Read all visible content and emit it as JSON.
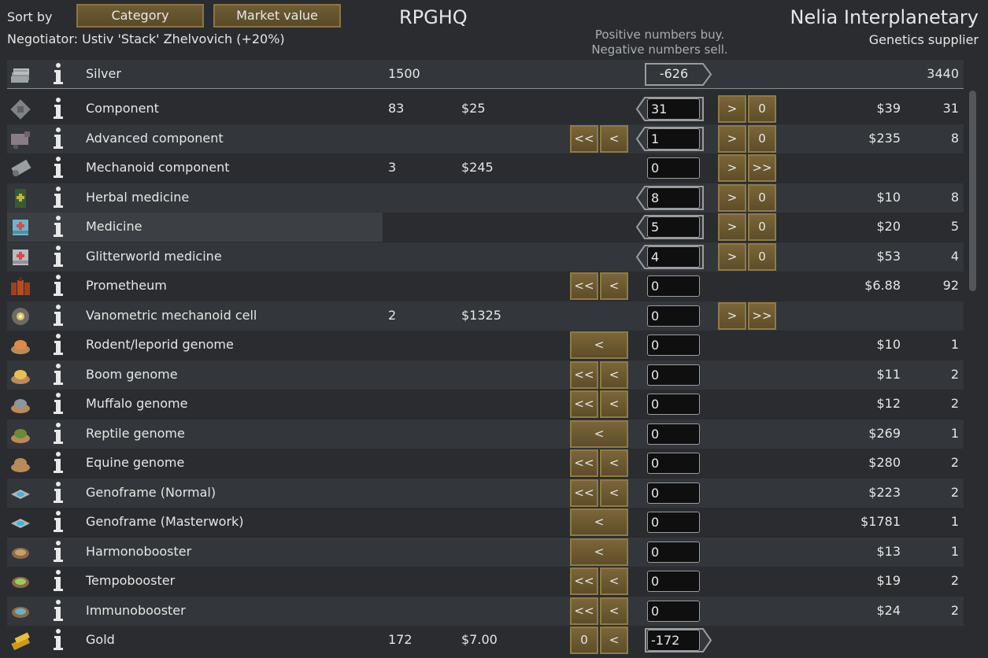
{
  "header": {
    "sort_by_label": "Sort by",
    "sort_buttons": [
      "Category",
      "Market value"
    ],
    "negotiator": "Negotiator: Ustiv 'Stack' Zhelvovich (+20%)",
    "colony_name": "RPGHQ",
    "trader_name": "Nelia Interplanetary",
    "trader_kind": "Genetics supplier",
    "hint_line1": "Positive numbers buy.",
    "hint_line2": "Negative numbers sell."
  },
  "silver": {
    "name": "Silver",
    "colony_count": "1500",
    "trade_amount": "-626",
    "trader_count": "3440",
    "icon": "silver-icon"
  },
  "rows": [
    {
      "name": "Component",
      "icon": "component-icon",
      "colony_count": "83",
      "colony_price": "$25",
      "left_buttons": [],
      "field": "31",
      "arrow": "left",
      "right_buttons": [
        ">",
        "0"
      ],
      "trader_price": "$39",
      "trader_count": "31"
    },
    {
      "name": "Advanced component",
      "icon": "advanced-component-icon",
      "colony_count": "",
      "colony_price": "",
      "left_buttons": [
        "<<",
        "<"
      ],
      "field": "1",
      "arrow": "left",
      "right_buttons": [
        ">",
        "0"
      ],
      "trader_price": "$235",
      "trader_count": "8"
    },
    {
      "name": "Mechanoid component",
      "icon": "mechanoid-component-icon",
      "colony_count": "3",
      "colony_price": "$245",
      "left_buttons": [],
      "field": "0",
      "arrow": "",
      "right_buttons": [
        ">",
        ">>"
      ],
      "trader_price": "",
      "trader_count": ""
    },
    {
      "name": "Herbal medicine",
      "icon": "herbal-medicine-icon",
      "colony_count": "",
      "colony_price": "",
      "left_buttons": [],
      "field": "8",
      "arrow": "left",
      "right_buttons": [
        ">",
        "0"
      ],
      "trader_price": "$10",
      "trader_count": "8"
    },
    {
      "name": "Medicine",
      "icon": "medicine-icon",
      "colony_count": "",
      "colony_price": "",
      "left_buttons": [],
      "field": "5",
      "arrow": "left",
      "right_buttons": [
        ">",
        "0"
      ],
      "trader_price": "$20",
      "trader_count": "5",
      "highlight": true
    },
    {
      "name": "Glitterworld medicine",
      "icon": "glitterworld-medicine-icon",
      "colony_count": "",
      "colony_price": "",
      "left_buttons": [],
      "field": "4",
      "arrow": "left",
      "right_buttons": [
        ">",
        "0"
      ],
      "trader_price": "$53",
      "trader_count": "4"
    },
    {
      "name": "Prometheum",
      "icon": "prometheum-icon",
      "colony_count": "",
      "colony_price": "",
      "left_buttons": [
        "<<",
        "<"
      ],
      "field": "0",
      "arrow": "",
      "right_buttons": [],
      "trader_price": "$6.88",
      "trader_count": "92"
    },
    {
      "name": "Vanometric mechanoid cell",
      "icon": "vanometric-cell-icon",
      "colony_count": "2",
      "colony_price": "$1325",
      "left_buttons": [],
      "field": "0",
      "arrow": "",
      "right_buttons": [
        ">",
        ">>"
      ],
      "trader_price": "",
      "trader_count": ""
    },
    {
      "name": "Rodent/leporid genome",
      "icon": "genome-icon",
      "colony_count": "",
      "colony_price": "",
      "left_buttons": [
        "<"
      ],
      "field": "0",
      "arrow": "",
      "right_buttons": [],
      "trader_price": "$10",
      "trader_count": "1"
    },
    {
      "name": "Boom genome",
      "icon": "genome-icon",
      "colony_count": "",
      "colony_price": "",
      "left_buttons": [
        "<<",
        "<"
      ],
      "field": "0",
      "arrow": "",
      "right_buttons": [],
      "trader_price": "$11",
      "trader_count": "2"
    },
    {
      "name": "Muffalo genome",
      "icon": "genome-icon",
      "colony_count": "",
      "colony_price": "",
      "left_buttons": [
        "<<",
        "<"
      ],
      "field": "0",
      "arrow": "",
      "right_buttons": [],
      "trader_price": "$12",
      "trader_count": "2"
    },
    {
      "name": "Reptile genome",
      "icon": "genome-icon",
      "colony_count": "",
      "colony_price": "",
      "left_buttons": [
        "<"
      ],
      "field": "0",
      "arrow": "",
      "right_buttons": [],
      "trader_price": "$269",
      "trader_count": "1"
    },
    {
      "name": "Equine genome",
      "icon": "genome-icon",
      "colony_count": "",
      "colony_price": "",
      "left_buttons": [
        "<<",
        "<"
      ],
      "field": "0",
      "arrow": "",
      "right_buttons": [],
      "trader_price": "$280",
      "trader_count": "2"
    },
    {
      "name": "Genoframe (Normal)",
      "icon": "genoframe-icon",
      "colony_count": "",
      "colony_price": "",
      "left_buttons": [
        "<<",
        "<"
      ],
      "field": "0",
      "arrow": "",
      "right_buttons": [],
      "trader_price": "$223",
      "trader_count": "2"
    },
    {
      "name": "Genoframe (Masterwork)",
      "icon": "genoframe-icon",
      "colony_count": "",
      "colony_price": "",
      "left_buttons": [
        "<"
      ],
      "field": "0",
      "arrow": "",
      "right_buttons": [],
      "trader_price": "$1781",
      "trader_count": "1"
    },
    {
      "name": "Harmonobooster",
      "icon": "booster-icon",
      "colony_count": "",
      "colony_price": "",
      "left_buttons": [
        "<"
      ],
      "field": "0",
      "arrow": "",
      "right_buttons": [],
      "trader_price": "$13",
      "trader_count": "1"
    },
    {
      "name": "Tempobooster",
      "icon": "booster-icon",
      "colony_count": "",
      "colony_price": "",
      "left_buttons": [
        "<<",
        "<"
      ],
      "field": "0",
      "arrow": "",
      "right_buttons": [],
      "trader_price": "$19",
      "trader_count": "2"
    },
    {
      "name": "Immunobooster",
      "icon": "booster-icon",
      "colony_count": "",
      "colony_price": "",
      "left_buttons": [
        "<<",
        "<"
      ],
      "field": "0",
      "arrow": "",
      "right_buttons": [],
      "trader_price": "$24",
      "trader_count": "2"
    },
    {
      "name": "Gold",
      "icon": "gold-icon",
      "colony_count": "172",
      "colony_price": "$7.00",
      "left_buttons": [
        "0",
        "<"
      ],
      "field": "-172",
      "arrow": "right",
      "right_buttons": [],
      "trader_price": "",
      "trader_count": ""
    }
  ],
  "colors": {
    "button_fill": "#6e5c35",
    "button_border": "#8f7a48",
    "background": "#2a2c2f",
    "row_alt": "#33363a",
    "field_bg": "#0f0f10"
  }
}
